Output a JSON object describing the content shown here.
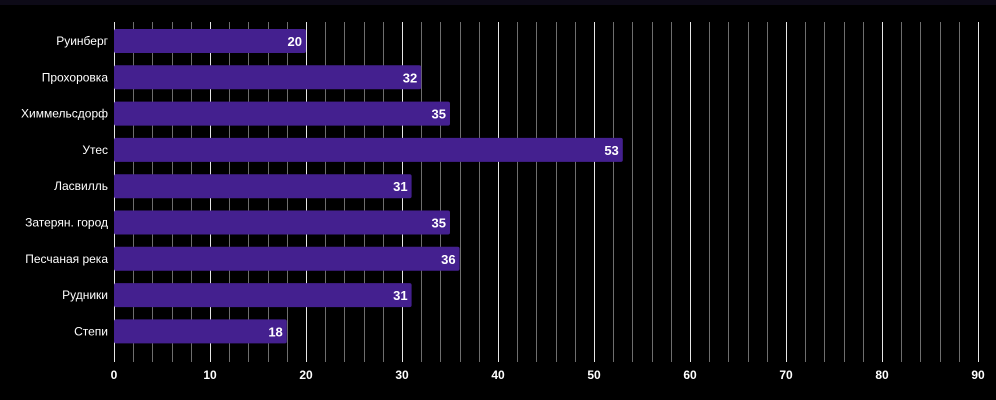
{
  "chart_data": {
    "type": "bar",
    "orientation": "horizontal",
    "categories": [
      "Руинберг",
      "Прохоровка",
      "Химмельсдорф",
      "Утес",
      "Ласвилль",
      "Затерян. город",
      "Песчаная река",
      "Рудники",
      "Степи"
    ],
    "values": [
      20,
      32,
      35,
      53,
      31,
      35,
      36,
      31,
      18
    ],
    "xlim": [
      0,
      90
    ],
    "xticks": [
      0,
      10,
      20,
      30,
      40,
      50,
      60,
      70,
      80,
      90
    ],
    "grid": true,
    "data_labels": true,
    "title": "",
    "xlabel": "",
    "ylabel": ""
  },
  "colors": {
    "background": "#000000",
    "bar": "#44208f",
    "grid_major": "#e6e6e6",
    "grid_minor": "#6e6e6e",
    "text": "#ffffff"
  }
}
